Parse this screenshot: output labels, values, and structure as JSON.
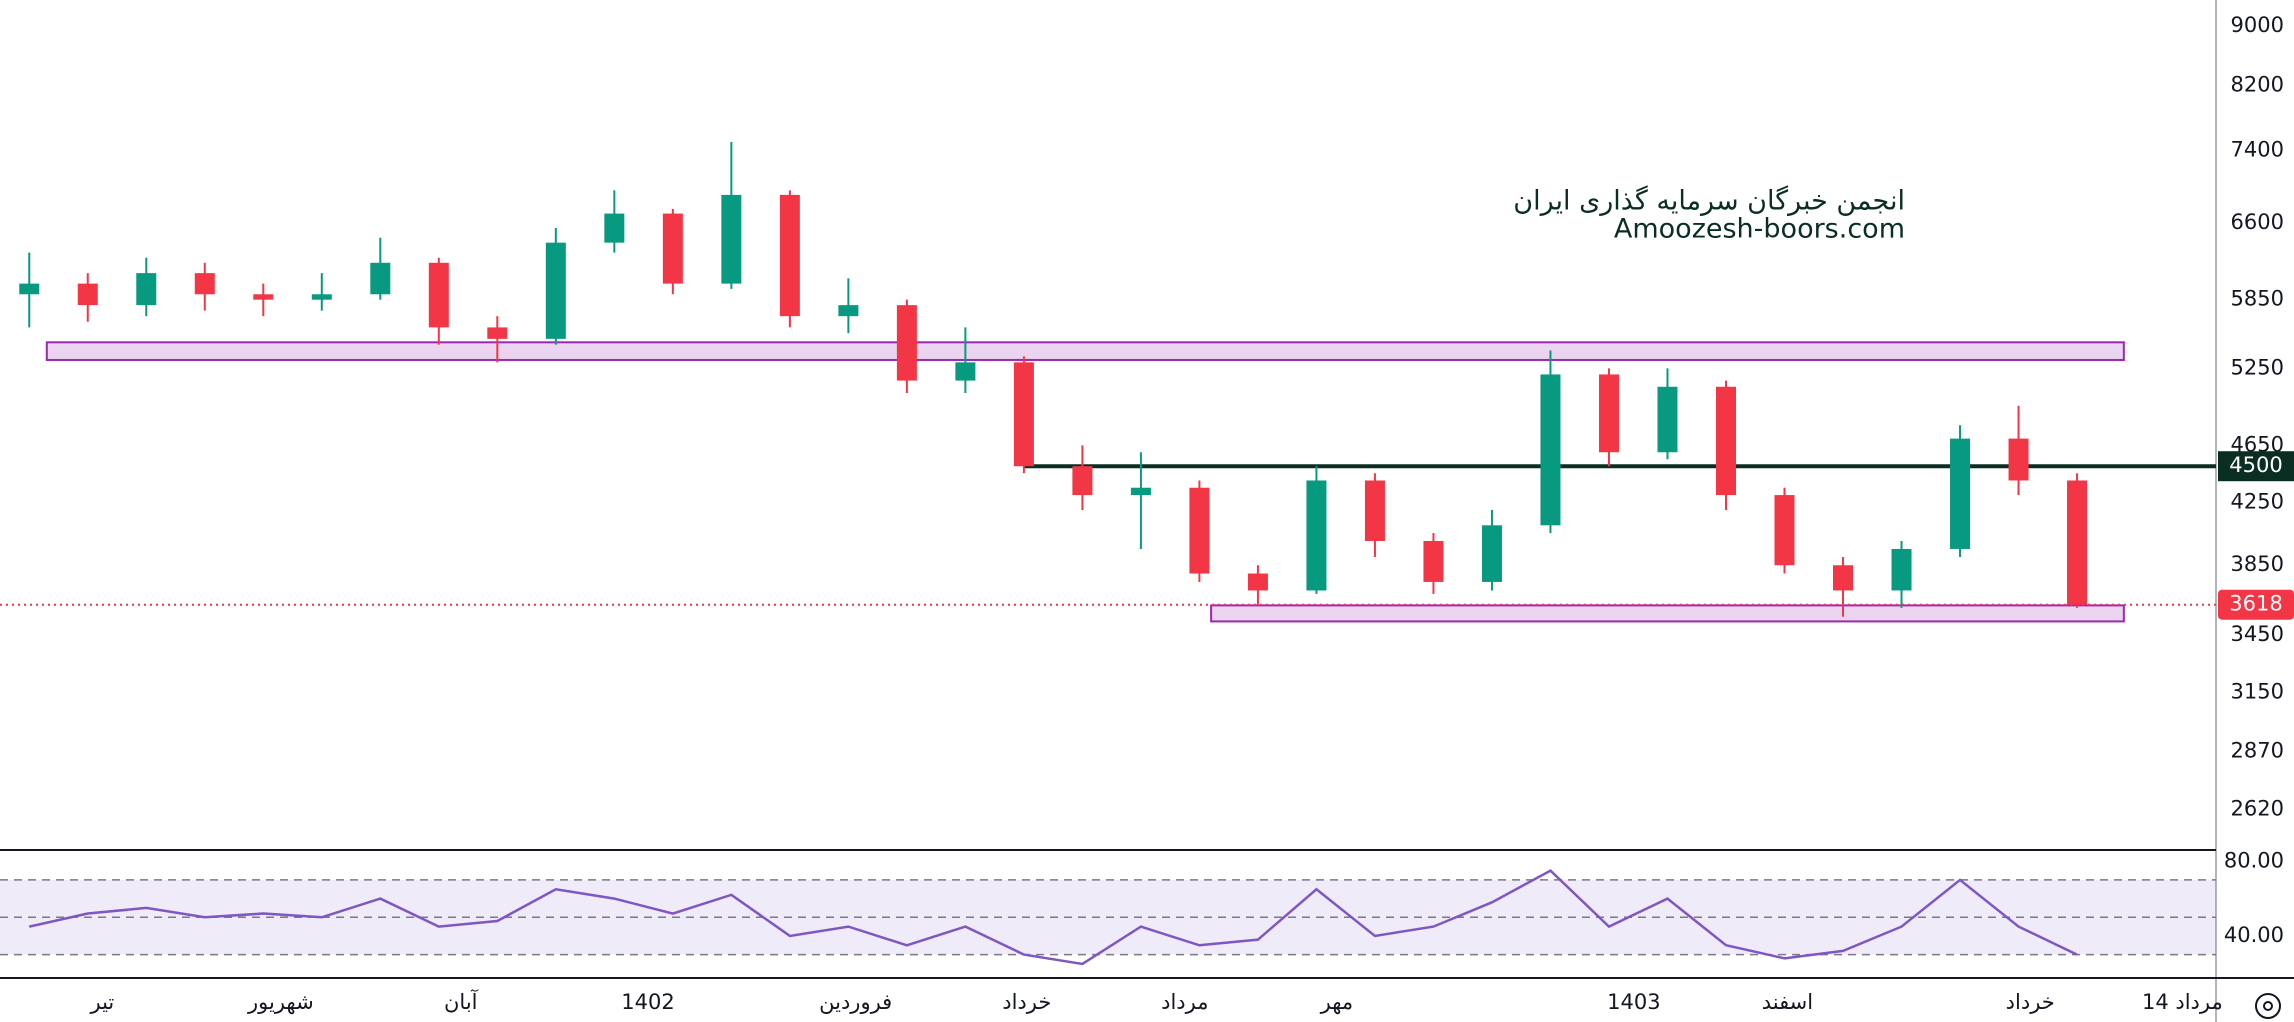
{
  "chart_data": [
    {
      "type": "candlestick",
      "watermark": [
        "انجمن خبرگان سرمایه گذاری ایران",
        "Amoozesh-boors.com"
      ],
      "open": [
        5900,
        6000,
        5800,
        6100,
        5900,
        5850,
        5900,
        6200,
        5600,
        5500,
        6400,
        6700,
        6000,
        6900,
        5700,
        5800,
        5150,
        5300,
        4500,
        4300,
        4350,
        3800,
        3700,
        4400,
        4000,
        3750,
        4100,
        5200,
        4600,
        5100,
        4300,
        3850,
        3700,
        3950,
        4700,
        4400
      ],
      "high": [
        6300,
        6100,
        6250,
        6200,
        6000,
        6100,
        6450,
        6250,
        5700,
        6550,
        6950,
        6750,
        7500,
        6950,
        6050,
        5850,
        5600,
        5350,
        4650,
        4600,
        4400,
        3850,
        4500,
        4450,
        4050,
        4200,
        5400,
        5250,
        5250,
        5150,
        4350,
        3900,
        4000,
        4800,
        4950,
        4450
      ],
      "low": [
        5600,
        5650,
        5700,
        5750,
        5700,
        5750,
        5850,
        5450,
        5300,
        5450,
        6300,
        5900,
        5950,
        5600,
        5550,
        5050,
        5050,
        4450,
        4200,
        3950,
        3750,
        3620,
        3680,
        3900,
        3680,
        3700,
        4050,
        4500,
        4550,
        4200,
        3800,
        3550,
        3600,
        3900,
        4300,
        3600
      ],
      "close": [
        6000,
        5800,
        6100,
        5900,
        5850,
        5900,
        6200,
        5600,
        5500,
        6400,
        6700,
        6000,
        6900,
        5700,
        5800,
        5150,
        5300,
        4500,
        4300,
        4350,
        3800,
        3700,
        4400,
        4000,
        3750,
        4100,
        5200,
        4600,
        5100,
        4300,
        3850,
        3700,
        3950,
        4700,
        4400,
        3618
      ],
      "up_color": "#089981",
      "down_color": "#f23645",
      "log": true,
      "ylim": [
        2466,
        9380
      ],
      "yticks": [
        9000,
        8200,
        7400,
        6600,
        5850,
        5250,
        4650,
        4250,
        3850,
        3450,
        3150,
        2870,
        2620
      ],
      "xlim": [
        -0.5,
        37.375
      ],
      "xticks": [
        {
          "value": 1.25,
          "label": "تیر"
        },
        {
          "value": 4.3,
          "label": "شهریور"
        },
        {
          "value": 7.375,
          "label": "آبان"
        },
        {
          "value": 10.575,
          "label": "1402"
        },
        {
          "value": 14.125,
          "label": "فروردین"
        },
        {
          "value": 17.05,
          "label": "خرداد"
        },
        {
          "value": 19.75,
          "label": "مرداد"
        },
        {
          "value": 22.35,
          "label": "مهر"
        },
        {
          "value": 27.425,
          "label": "1403"
        },
        {
          "value": 30.05,
          "label": "اسفند"
        },
        {
          "value": 34.2,
          "label": "خرداد"
        },
        {
          "value": 36.8,
          "label": "14 مرداد"
        }
      ],
      "zones": [
        {
          "from": 5320,
          "to": 5470,
          "x": [
            0.3,
            35.8
          ]
        },
        {
          "from": 3524,
          "to": 3614,
          "x": [
            20.2,
            35.8
          ]
        }
      ],
      "zone_color": "#9c27b0",
      "level": {
        "value": 4500,
        "x": 17,
        "color": "#0b2e22"
      },
      "last_color": "#f23645"
    },
    {
      "type": "line",
      "values": [
        45,
        52,
        55,
        50,
        52,
        50,
        60,
        45,
        48,
        65,
        60,
        52,
        62,
        40,
        45,
        35,
        45,
        30,
        25,
        45,
        35,
        38,
        65,
        40,
        45,
        58,
        75,
        45,
        60,
        35,
        28,
        32,
        45,
        70,
        45,
        30
      ],
      "color": "#7e57c2",
      "ylim": [
        18,
        85.5
      ],
      "yticks": [
        {
          "value": 80,
          "label": "80.00"
        },
        {
          "value": 40,
          "label": "40.00"
        }
      ],
      "levels": [
        70,
        50,
        30
      ],
      "band": [
        30,
        70
      ]
    }
  ]
}
